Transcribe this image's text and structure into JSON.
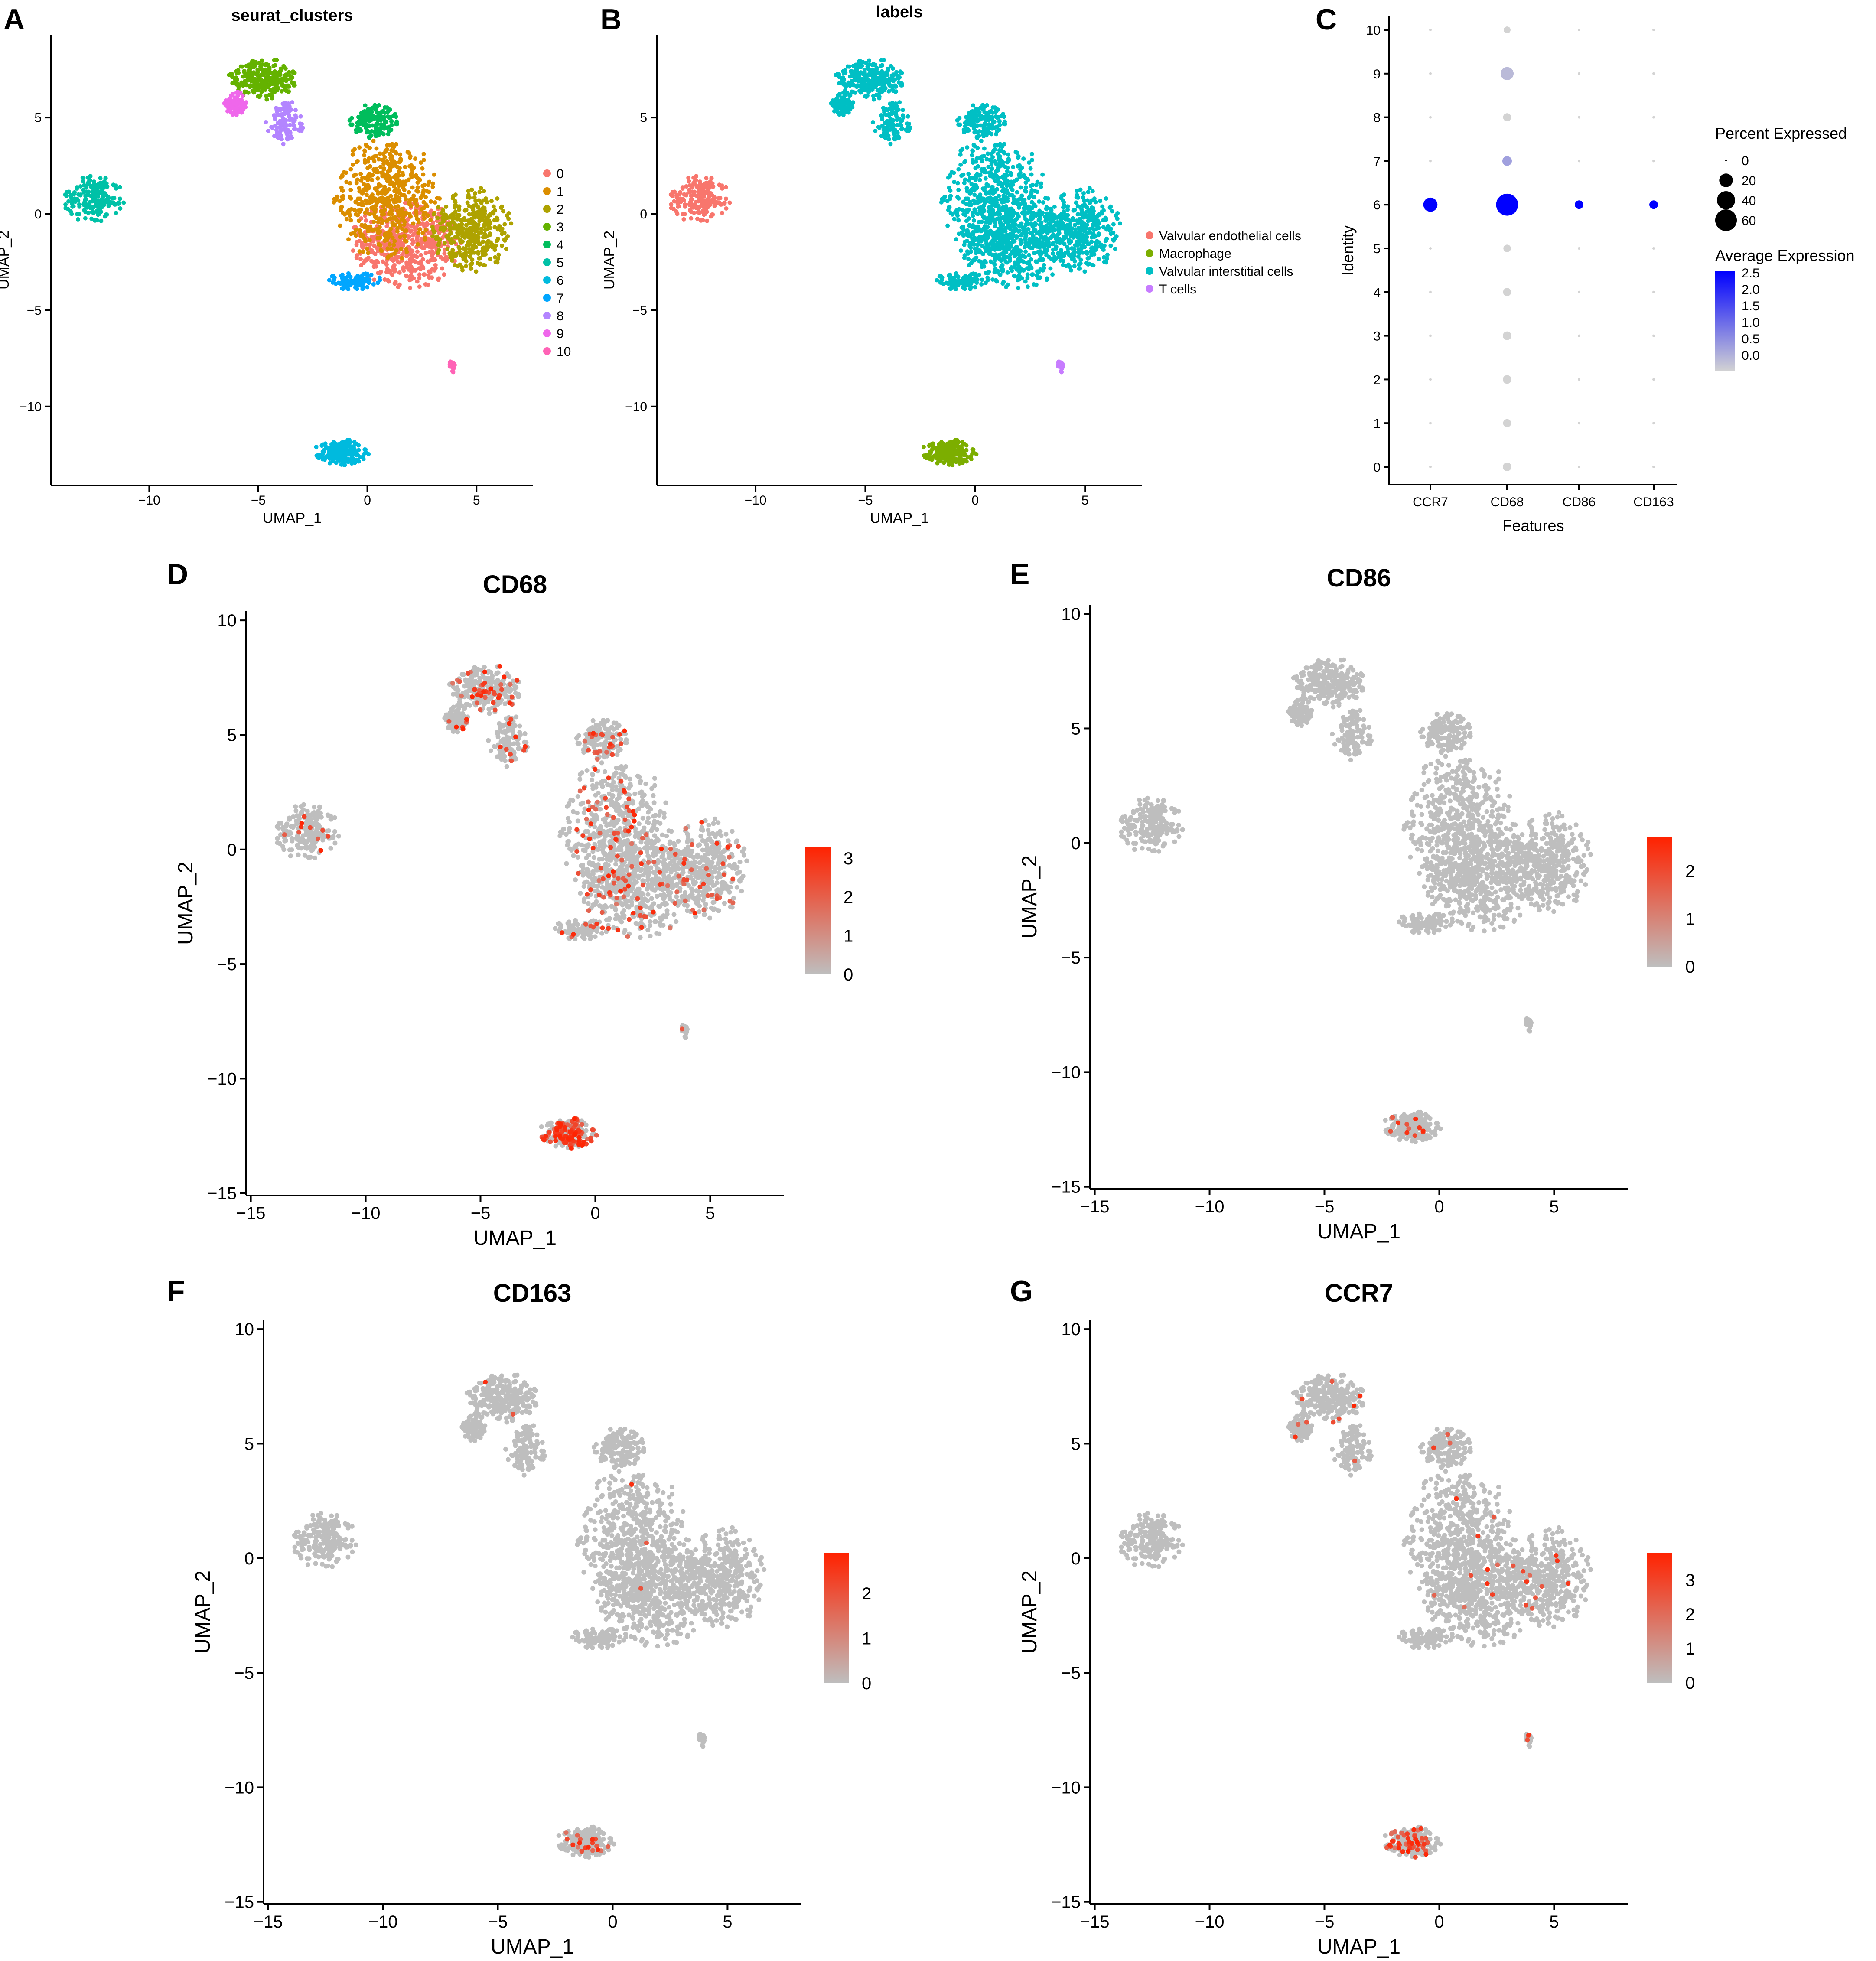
{
  "figure": {
    "panel_labels": [
      "A",
      "B",
      "C",
      "D",
      "E",
      "F",
      "G"
    ],
    "umap_islands_note": "Cell positions are approximations of the UMAP embedding read from the image"
  },
  "chart_data": [
    {
      "id": "A",
      "type": "scatter",
      "title": "seurat_clusters",
      "xlabel": "UMAP_1",
      "ylabel": "UMAP_2",
      "xlim": [
        -14.5,
        7.6
      ],
      "ylim": [
        -14.1,
        9.3
      ],
      "xticks": [
        -10,
        -5,
        0,
        5
      ],
      "yticks": [
        -10,
        -5,
        0,
        5
      ],
      "legend_title": "",
      "legend": [
        {
          "label": "0",
          "color": "#F8766D"
        },
        {
          "label": "1",
          "color": "#DB8E00"
        },
        {
          "label": "2",
          "color": "#AEA200"
        },
        {
          "label": "3",
          "color": "#64B200"
        },
        {
          "label": "4",
          "color": "#00BD5C"
        },
        {
          "label": "5",
          "color": "#00C1A7"
        },
        {
          "label": "6",
          "color": "#00BADE"
        },
        {
          "label": "7",
          "color": "#00A6FF"
        },
        {
          "label": "8",
          "color": "#B385FF"
        },
        {
          "label": "9",
          "color": "#EF67EB"
        },
        {
          "label": "10",
          "color": "#FF63B6"
        }
      ],
      "clusters": [
        {
          "id": 0,
          "cx": 1.8,
          "cy": -1.5,
          "rx": 2.6,
          "ry": 2.4
        },
        {
          "id": 1,
          "cx": 0.9,
          "cy": 0.8,
          "rx": 2.5,
          "ry": 3.3
        },
        {
          "id": 2,
          "cx": 4.8,
          "cy": -0.8,
          "rx": 1.9,
          "ry": 2.3
        },
        {
          "id": 3,
          "cx": -4.8,
          "cy": 7.0,
          "rx": 1.6,
          "ry": 1.1
        },
        {
          "id": 4,
          "cx": 0.3,
          "cy": 4.8,
          "rx": 1.2,
          "ry": 0.9
        },
        {
          "id": 5,
          "cx": -12.5,
          "cy": 0.8,
          "rx": 1.5,
          "ry": 1.3
        },
        {
          "id": 6,
          "cx": -1.2,
          "cy": -12.4,
          "rx": 1.3,
          "ry": 0.7
        },
        {
          "id": 7,
          "cx": -0.6,
          "cy": -3.5,
          "rx": 1.3,
          "ry": 0.5
        },
        {
          "id": 8,
          "cx": -3.8,
          "cy": 4.7,
          "rx": 0.9,
          "ry": 1.2
        },
        {
          "id": 9,
          "cx": -6.0,
          "cy": 5.7,
          "rx": 0.6,
          "ry": 0.7
        },
        {
          "id": 10,
          "cx": 3.9,
          "cy": -7.9,
          "rx": 0.15,
          "ry": 0.35
        }
      ]
    },
    {
      "id": "B",
      "type": "scatter",
      "title": "labels",
      "xlabel": "UMAP_1",
      "ylabel": "UMAP_2",
      "xlim": [
        -14.5,
        7.6
      ],
      "ylim": [
        -14.1,
        9.3
      ],
      "xticks": [
        -10,
        -5,
        0,
        5
      ],
      "yticks": [
        -10,
        -5,
        0,
        5
      ],
      "legend": [
        {
          "label": "Valvular endothelial cells",
          "color": "#F8766D"
        },
        {
          "label": "Macrophage",
          "color": "#7CAE00"
        },
        {
          "label": "Valvular interstitial cells",
          "color": "#00BFC4"
        },
        {
          "label": "T cells",
          "color": "#C77CFF"
        }
      ]
    },
    {
      "id": "C",
      "type": "dotplot",
      "xlabel": "Features",
      "ylabel": "Identity",
      "features": [
        "CCR7",
        "CD68",
        "CD86",
        "CD163"
      ],
      "identities": [
        "0",
        "1",
        "2",
        "3",
        "4",
        "5",
        "6",
        "7",
        "8",
        "9",
        "10"
      ],
      "percent_expressed": [
        [
          0,
          6,
          0,
          0
        ],
        [
          0,
          5,
          0,
          0
        ],
        [
          0,
          6,
          0,
          0
        ],
        [
          0,
          6,
          0,
          0
        ],
        [
          0,
          5,
          0,
          0
        ],
        [
          0,
          4,
          0,
          0
        ],
        [
          22,
          62,
          6,
          6
        ],
        [
          0,
          8,
          0,
          0
        ],
        [
          0,
          5,
          0,
          0
        ],
        [
          0,
          18,
          0,
          0
        ],
        [
          0,
          3,
          0,
          0
        ]
      ],
      "average_expression": [
        [
          0,
          0,
          0,
          0
        ],
        [
          0,
          0,
          0,
          0
        ],
        [
          0,
          0,
          0,
          0
        ],
        [
          0,
          0,
          0,
          0
        ],
        [
          0,
          0,
          0,
          0
        ],
        [
          0,
          0,
          0,
          0
        ],
        [
          2.5,
          2.5,
          2.5,
          2.5
        ],
        [
          0,
          0.6,
          0,
          0
        ],
        [
          0,
          0,
          0,
          0
        ],
        [
          0,
          0.3,
          0,
          0
        ],
        [
          0,
          0,
          0,
          0
        ]
      ],
      "size_legend_title": "Percent Expressed",
      "size_legend": [
        {
          "label": "0",
          "value": 0
        },
        {
          "label": "20",
          "value": 20
        },
        {
          "label": "40",
          "value": 40
        },
        {
          "label": "60",
          "value": 60
        }
      ],
      "color_legend_title": "Average Expression",
      "color_legend_labels": [
        "2.5",
        "2.0",
        "1.5",
        "1.0",
        "0.5",
        "0.0"
      ],
      "color_range": [
        0,
        2.5
      ],
      "color_low": "#D3D3D3",
      "color_high": "#0000FF"
    },
    {
      "id": "D",
      "type": "scatter",
      "title": "CD68",
      "xlabel": "UMAP_1",
      "ylabel": "UMAP_2",
      "xlim": [
        -15.2,
        8.2
      ],
      "ylim": [
        -15.1,
        10.4
      ],
      "xticks": [
        -15,
        -10,
        -5,
        0,
        5
      ],
      "yticks": [
        -15,
        -10,
        -5,
        0,
        5,
        10
      ],
      "legend_labels": [
        "3",
        "2",
        "1",
        "0"
      ],
      "max_value": 3.3,
      "expression": {
        "macrophage": 0.55,
        "main": 0.09,
        "endothelial": 0.04,
        "tcell": 0.05
      },
      "color_low": "#BEBEBE",
      "color_high": "#FF2200"
    },
    {
      "id": "E",
      "type": "scatter",
      "title": "CD86",
      "xlabel": "UMAP_1",
      "ylabel": "UMAP_2",
      "xlim": [
        -15.2,
        8.2
      ],
      "ylim": [
        -15.1,
        10.4
      ],
      "xticks": [
        -15,
        -10,
        -5,
        0,
        5
      ],
      "yticks": [
        -15,
        -10,
        -5,
        0,
        5,
        10
      ],
      "legend_labels": [
        "2",
        "1",
        "0"
      ],
      "max_value": 2.7,
      "expression": {
        "macrophage": 0.05,
        "main": 0.0,
        "endothelial": 0.0,
        "tcell": 0.0
      },
      "color_low": "#BEBEBE",
      "color_high": "#FF2200"
    },
    {
      "id": "F",
      "type": "scatter",
      "title": "CD163",
      "xlabel": "UMAP_1",
      "ylabel": "UMAP_2",
      "xlim": [
        -15.2,
        8.2
      ],
      "ylim": [
        -15.1,
        10.4
      ],
      "xticks": [
        -15,
        -10,
        -5,
        0,
        5
      ],
      "yticks": [
        -15,
        -10,
        -5,
        0,
        5,
        10
      ],
      "legend_labels": [
        "2",
        "1",
        "0"
      ],
      "max_value": 2.9,
      "expression": {
        "macrophage": 0.07,
        "main": 0.003,
        "endothelial": 0.0,
        "tcell": 0.0
      },
      "color_low": "#BEBEBE",
      "color_high": "#FF2200"
    },
    {
      "id": "G",
      "type": "scatter",
      "title": "CCR7",
      "xlabel": "UMAP_1",
      "ylabel": "UMAP_2",
      "xlim": [
        -15.2,
        8.2
      ],
      "ylim": [
        -15.1,
        10.4
      ],
      "xticks": [
        -15,
        -10,
        -5,
        0,
        5
      ],
      "yticks": [
        -15,
        -10,
        -5,
        0,
        5,
        10
      ],
      "legend_labels": [
        "3",
        "2",
        "1",
        "0"
      ],
      "max_value": 3.8,
      "expression": {
        "macrophage": 0.2,
        "main": 0.012,
        "endothelial": 0.0,
        "tcell": 0.1
      },
      "color_low": "#BEBEBE",
      "color_high": "#FF2200"
    }
  ]
}
